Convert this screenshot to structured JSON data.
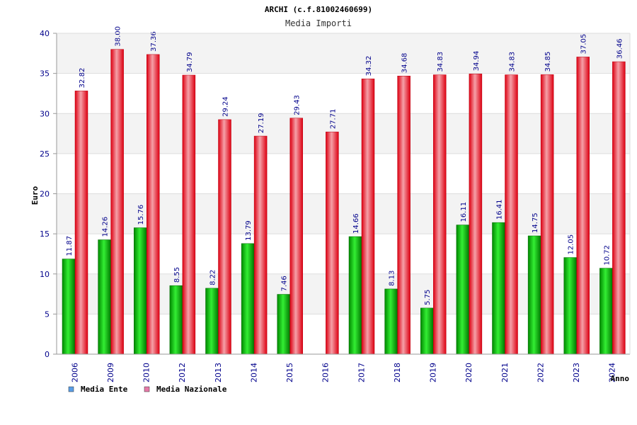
{
  "chart_data": {
    "type": "bar",
    "title": "ARCHI (c.f.81002460699)",
    "subtitle": "Media Importi",
    "xlabel": "Anno",
    "ylabel": "Euro",
    "ylim": [
      0,
      40
    ],
    "yticks": [
      "0",
      "5",
      "10",
      "15",
      "20",
      "25",
      "30",
      "35",
      "40"
    ],
    "categories": [
      "2006",
      "2009",
      "2010",
      "2012",
      "2013",
      "2014",
      "2015",
      "2016",
      "2017",
      "2018",
      "2019",
      "2020",
      "2021",
      "2022",
      "2023",
      "2024"
    ],
    "series": [
      {
        "name": "Media Ente",
        "color": "#00bb00",
        "legend_color": "#5a9ee6",
        "values": [
          11.87,
          14.26,
          15.76,
          8.55,
          8.22,
          13.79,
          7.46,
          null,
          14.66,
          8.13,
          5.75,
          16.11,
          16.41,
          14.75,
          12.05,
          10.72
        ],
        "labels": [
          "11.87",
          "14.26",
          "15.76",
          "8.55",
          "8.22",
          "13.79",
          "7.46",
          "",
          "14.66",
          "8.13",
          "5.75",
          "16.11",
          "16.41",
          "14.75",
          "12.05",
          "10.72"
        ]
      },
      {
        "name": "Media Nazionale",
        "color": "#ee1122",
        "legend_color": "#e67aa8",
        "values": [
          32.82,
          38.0,
          37.36,
          34.79,
          29.24,
          27.19,
          29.43,
          27.71,
          34.32,
          34.68,
          34.83,
          34.94,
          34.83,
          34.85,
          37.05,
          36.46
        ],
        "labels": [
          "32.82",
          "38.00",
          "37.36",
          "34.79",
          "29.24",
          "27.19",
          "29.43",
          "27.71",
          "34.32",
          "34.68",
          "34.83",
          "34.94",
          "34.83",
          "34.85",
          "37.05",
          "36.46"
        ]
      }
    ],
    "grid": true,
    "legend_position": "bottom-left"
  }
}
